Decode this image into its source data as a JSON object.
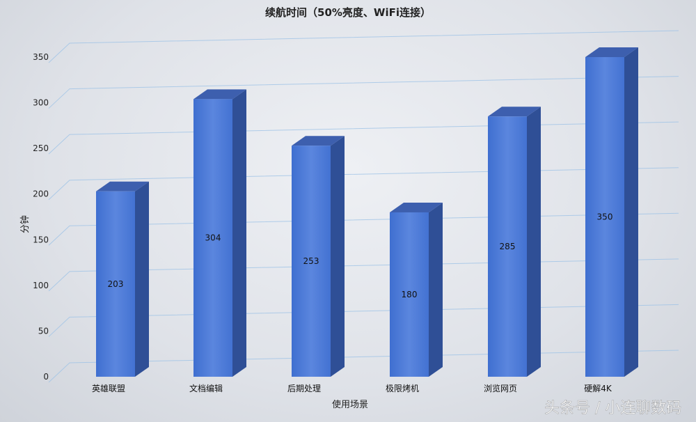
{
  "chart_data": {
    "type": "bar",
    "title": "续航时间（50%亮度、WiFi连接）",
    "xlabel": "使用场景",
    "ylabel": "分钟",
    "categories": [
      "英雄联盟",
      "文档编辑",
      "后期处理",
      "极限烤机",
      "浏览网页",
      "硬解4K"
    ],
    "values": [
      203,
      304,
      253,
      180,
      285,
      350
    ],
    "ylim": [
      0,
      350
    ],
    "yticks": [
      0,
      50,
      100,
      150,
      200,
      250,
      300,
      350
    ],
    "grid": true,
    "style": "3d-column",
    "colors": {
      "front": "#4f7bd6",
      "side": "#2f4f96",
      "top": "#3d5fae"
    }
  },
  "watermark": "头条号 / 小连聊数码"
}
